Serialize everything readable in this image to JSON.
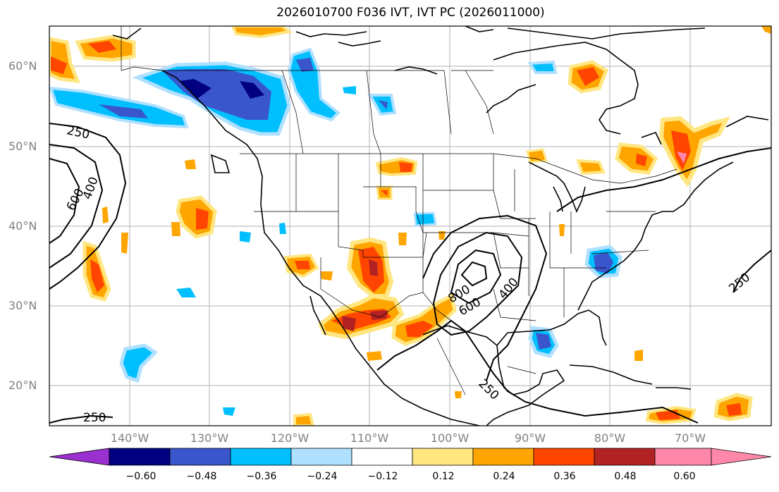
{
  "title": "2026010700 F036 IVT, IVT PC (2026011000)",
  "lat_labels": [
    "60°N",
    "50°N",
    "40°N",
    "30°N",
    "20°N"
  ],
  "lon_labels": [
    "140°W",
    "130°W",
    "120°W",
    "110°W",
    "100°W",
    "90°W",
    "80°W",
    "70°W"
  ],
  "contour_labels": [
    "250",
    "600",
    "400",
    "800",
    "600",
    "400",
    "250",
    "250",
    "250"
  ],
  "colorbar": {
    "ticks": [
      "−0.60",
      "−0.48",
      "−0.36",
      "−0.24",
      "−0.12",
      "0.12",
      "0.24",
      "0.36",
      "0.48",
      "0.60"
    ],
    "colors": [
      "#9b30d0",
      "#000080",
      "#3a56cc",
      "#00bfff",
      "#b0e0ff",
      "#ffffff",
      "#ffe680",
      "#ffa500",
      "#ff4500",
      "#b22222",
      "#ff88aa"
    ]
  },
  "colors": {
    "strong_neg": "#3a56cc",
    "mid_neg": "#00bfff",
    "weak_neg": "#b0e0ff",
    "weak_pos": "#ffe680",
    "mid_pos": "#ffa500",
    "strong_pos": "#ff4500",
    "max_pos": "#b22222"
  }
}
